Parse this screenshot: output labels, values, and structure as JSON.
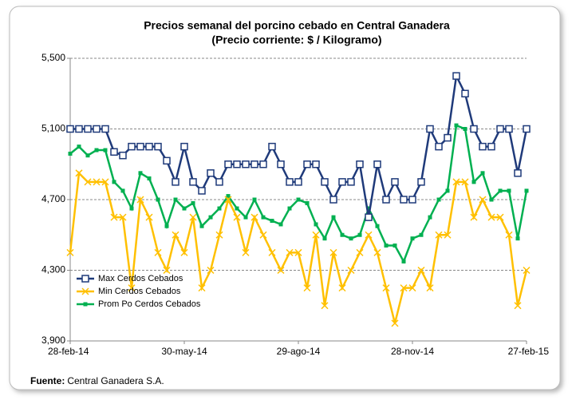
{
  "chart_data": {
    "type": "line",
    "title": "Precios semanal del porcino cebado en Central Ganadera",
    "subtitle": "(Precio corriente: $ / Kilogramo)",
    "categories": [
      "28-feb-14",
      null,
      null,
      null,
      null,
      null,
      null,
      null,
      null,
      null,
      null,
      null,
      null,
      "30-may-14",
      null,
      null,
      null,
      null,
      null,
      null,
      null,
      null,
      null,
      null,
      null,
      null,
      "29-ago-14",
      null,
      null,
      null,
      null,
      null,
      null,
      null,
      null,
      null,
      null,
      null,
      null,
      "28-nov-14",
      null,
      null,
      null,
      null,
      null,
      null,
      null,
      null,
      null,
      null,
      null,
      null,
      "27-feb-15"
    ],
    "series": [
      {
        "name": "Max Cerdos Cebados",
        "color": "#1f3a7a",
        "marker": "square",
        "values": [
          5100,
          5100,
          5100,
          5100,
          5100,
          4970,
          4950,
          5000,
          5000,
          5000,
          5000,
          4920,
          4800,
          5000,
          4800,
          4750,
          4850,
          4800,
          4900,
          4900,
          4900,
          4900,
          4900,
          5000,
          4900,
          4800,
          4800,
          4900,
          4900,
          4800,
          4700,
          4800,
          4800,
          4900,
          4600,
          4900,
          4700,
          4800,
          4700,
          4700,
          4800,
          5100,
          5000,
          5050,
          5400,
          5300,
          5100,
          5000,
          5000,
          5100,
          5100,
          4850,
          5100
        ]
      },
      {
        "name": "Min Cerdos Cebados",
        "color": "#ffc000",
        "marker": "x",
        "values": [
          4400,
          4850,
          4800,
          4800,
          4800,
          4600,
          4600,
          4200,
          4700,
          4600,
          4400,
          4300,
          4500,
          4400,
          4600,
          4200,
          4300,
          4500,
          4700,
          4600,
          4400,
          4600,
          4500,
          4400,
          4300,
          4400,
          4400,
          4200,
          4500,
          4100,
          4400,
          4200,
          4300,
          4400,
          4500,
          4400,
          4200,
          4000,
          4200,
          4200,
          4300,
          4200,
          4500,
          4500,
          4800,
          4800,
          4600,
          4700,
          4600,
          4600,
          4500,
          4100,
          4300
        ]
      },
      {
        "name": "Prom Po Cerdos Cebados",
        "color": "#00b050",
        "marker": "dot",
        "values": [
          4960,
          5000,
          4950,
          4980,
          4980,
          4800,
          4750,
          4650,
          4850,
          4820,
          4700,
          4550,
          4700,
          4650,
          4680,
          4550,
          4600,
          4650,
          4720,
          4650,
          4600,
          4700,
          4600,
          4580,
          4560,
          4650,
          4700,
          4680,
          4560,
          4480,
          4600,
          4500,
          4480,
          4500,
          4650,
          4550,
          4440,
          4440,
          4350,
          4480,
          4500,
          4600,
          4700,
          4750,
          5120,
          5100,
          4800,
          4850,
          4700,
          4750,
          4750,
          4480,
          4750
        ]
      }
    ],
    "ylim": [
      3900,
      5500
    ],
    "yticks": [
      {
        "value": 3900,
        "label": "3,900"
      },
      {
        "value": 4300,
        "label": "4,300"
      },
      {
        "value": 4700,
        "label": "4,700"
      },
      {
        "value": 5100,
        "label": "5,100"
      },
      {
        "value": 5500,
        "label": "5,500"
      }
    ],
    "grid": true,
    "legend": "lower left",
    "source_label": "Fuente:",
    "source": "Central Ganadera S.A."
  }
}
